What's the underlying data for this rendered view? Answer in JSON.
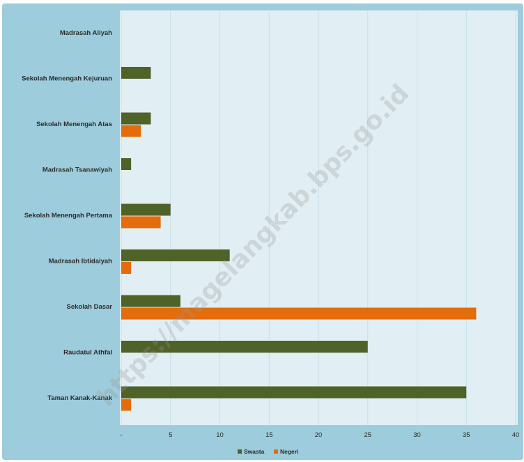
{
  "chart_data": {
    "type": "bar",
    "orientation": "horizontal",
    "categories": [
      "Madrasah Aliyah",
      "Sekolah Menengah Kejuruan",
      "Sekolah Menengah Atas",
      "Madrasah Tsanawiyah",
      "Sekolah Menengah Pertama",
      "Madrasah Ibtidaiyah",
      "Sekolah Dasar",
      "Raudatul Athfal",
      "Taman Kanak-Kanak"
    ],
    "series": [
      {
        "name": "Swasta",
        "color": "#4f6228",
        "values": [
          0,
          3,
          3,
          1,
          5,
          11,
          6,
          25,
          35
        ]
      },
      {
        "name": "Negeri",
        "color": "#e46c0a",
        "values": [
          0,
          0,
          2,
          0,
          4,
          1,
          36,
          0,
          1
        ]
      }
    ],
    "xticks": [
      "-",
      "5",
      "10",
      "15",
      "20",
      "25",
      "30",
      "35",
      "40"
    ],
    "xlim": [
      0,
      40
    ],
    "grid": true,
    "legend_position": "bottom",
    "watermark": "https://magelangkab.bps.go.id"
  }
}
